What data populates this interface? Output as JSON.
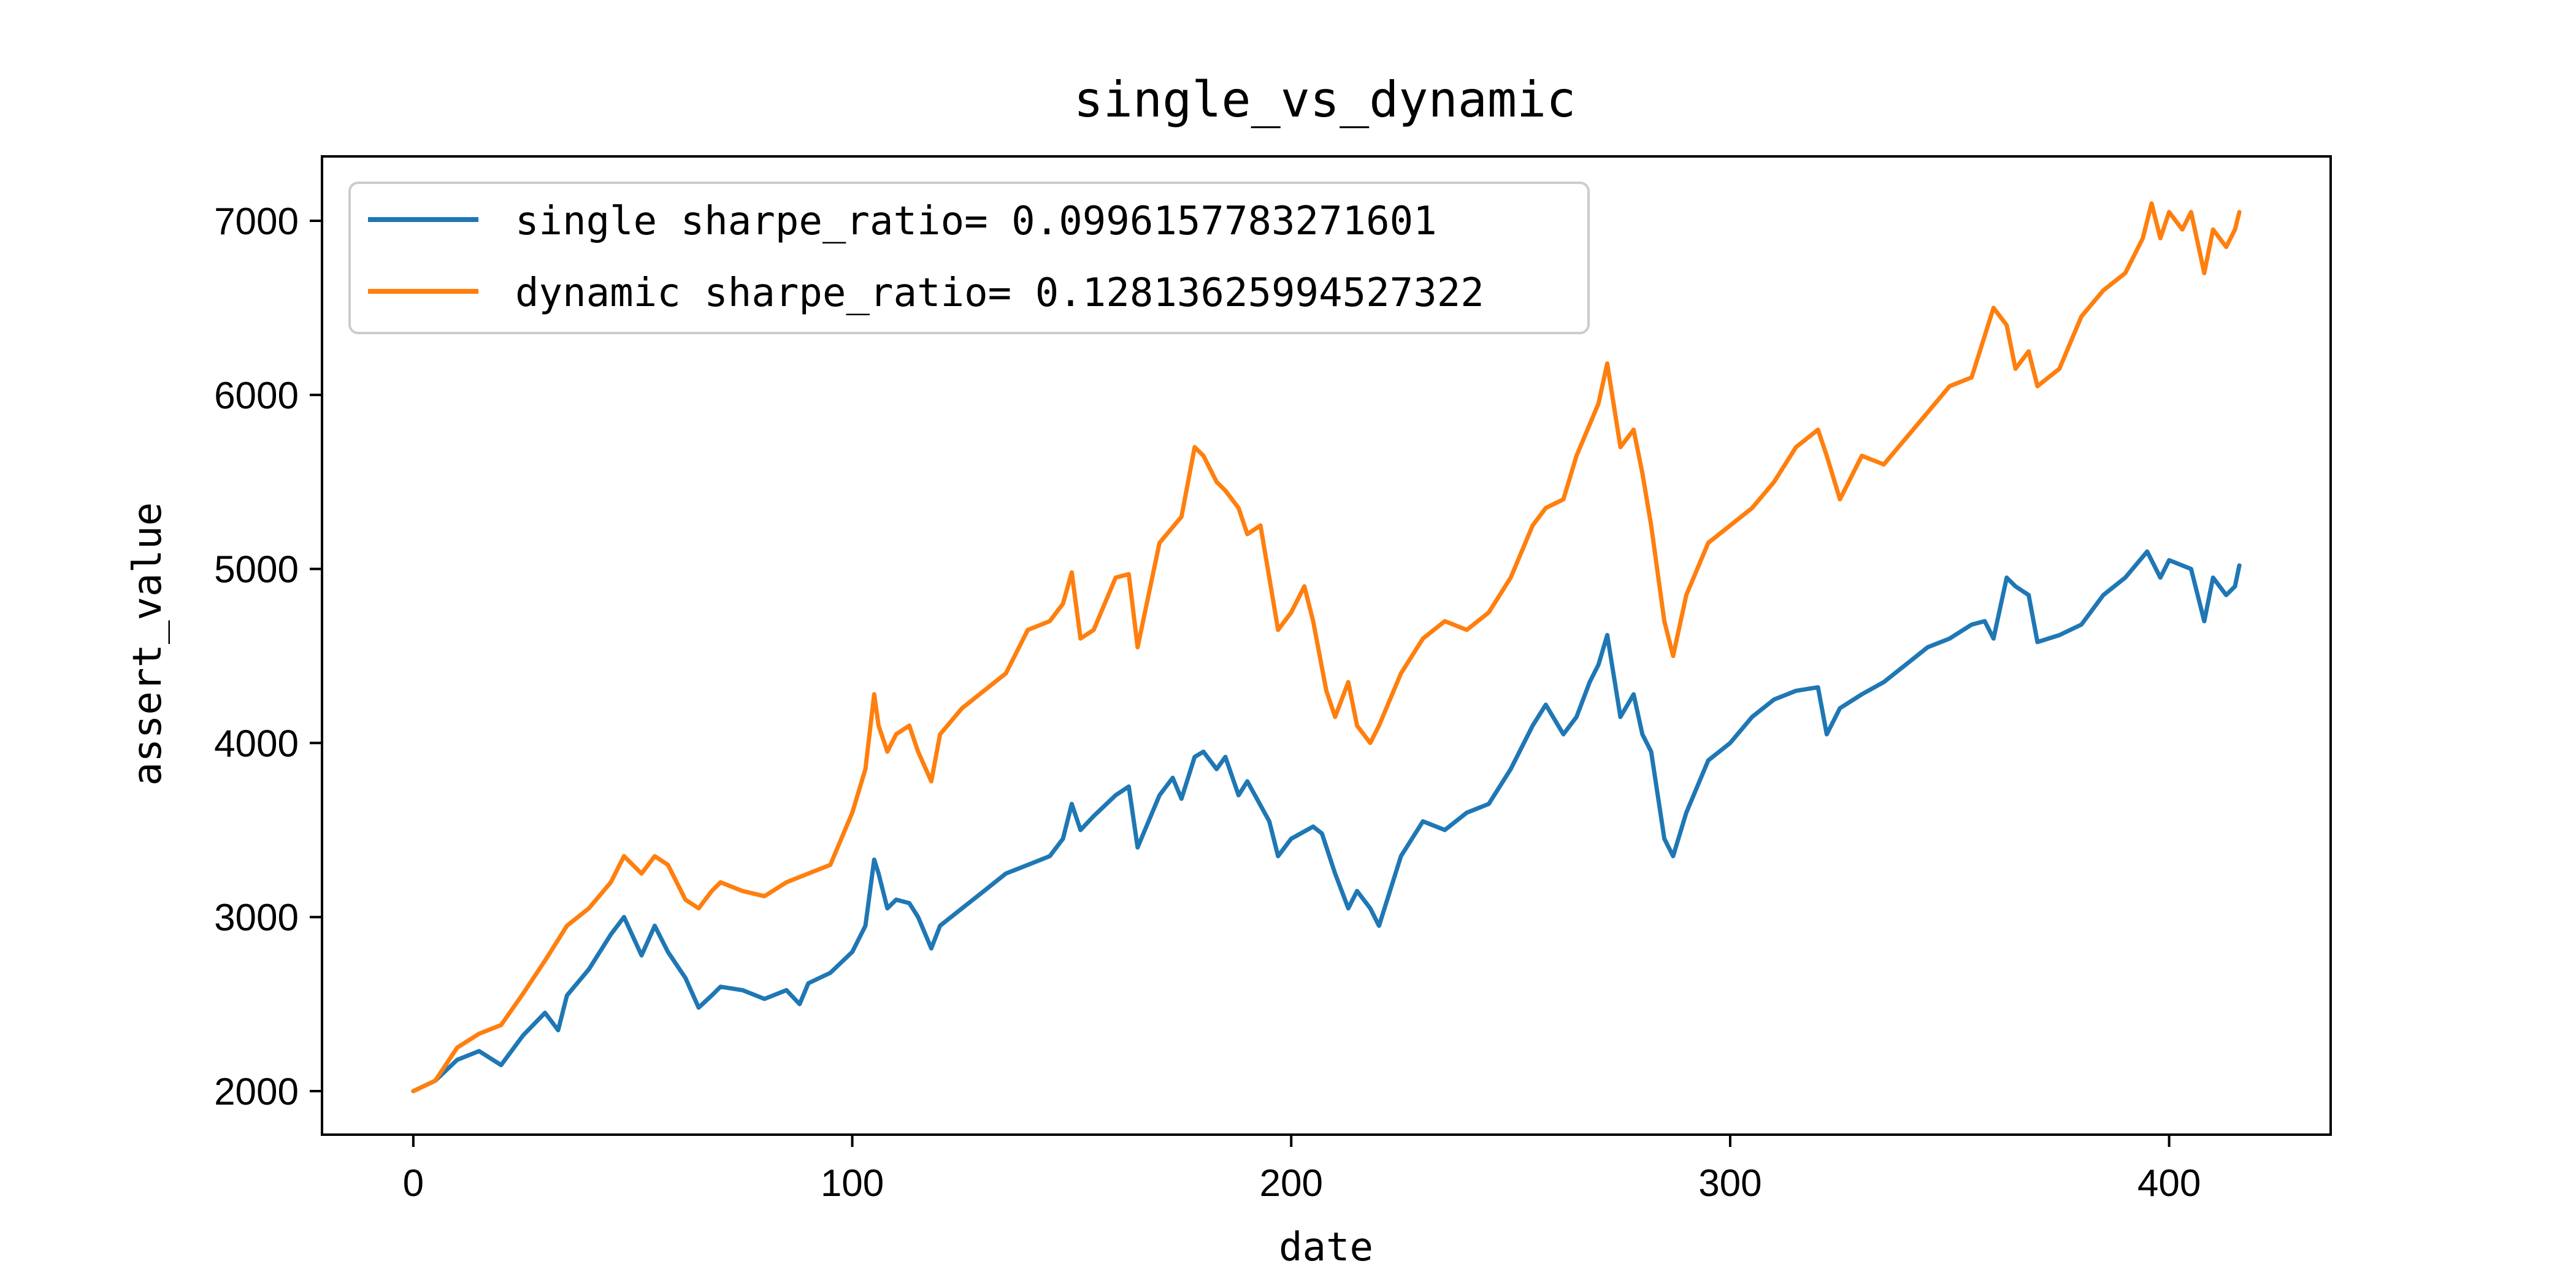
{
  "chart_data": {
    "type": "line",
    "title": "single_vs_dynamic",
    "xlabel": "date",
    "ylabel": "assert_value",
    "xlim": [
      -20.8,
      436.8
    ],
    "ylim": [
      1750,
      7370
    ],
    "xticks": [
      0,
      100,
      200,
      300,
      400
    ],
    "yticks": [
      2000,
      3000,
      4000,
      5000,
      6000,
      7000
    ],
    "x_tick_labels": [
      "0",
      "100",
      "200",
      "300",
      "400"
    ],
    "y_tick_labels": [
      "2000",
      "3000",
      "4000",
      "5000",
      "6000",
      "7000"
    ],
    "legend_position": "top-left",
    "grid": false,
    "series": [
      {
        "name": "single sharpe_ratio= 0.0996157783271601",
        "color": "#1f77b4",
        "x": [
          0,
          5,
          10,
          15,
          20,
          25,
          30,
          33,
          35,
          40,
          45,
          48,
          52,
          55,
          58,
          62,
          65,
          68,
          70,
          75,
          80,
          85,
          88,
          90,
          95,
          100,
          103,
          105,
          106,
          108,
          110,
          113,
          115,
          118,
          120,
          125,
          130,
          135,
          140,
          145,
          148,
          150,
          152,
          155,
          160,
          163,
          165,
          170,
          173,
          175,
          178,
          180,
          183,
          185,
          188,
          190,
          195,
          197,
          200,
          205,
          207,
          210,
          213,
          215,
          218,
          220,
          225,
          230,
          235,
          240,
          245,
          250,
          255,
          258,
          262,
          265,
          268,
          270,
          272,
          275,
          278,
          280,
          282,
          285,
          287,
          290,
          295,
          300,
          305,
          310,
          315,
          320,
          322,
          325,
          330,
          335,
          340,
          345,
          350,
          355,
          358,
          360,
          363,
          365,
          368,
          370,
          375,
          380,
          385,
          390,
          395,
          398,
          400,
          405,
          408,
          410,
          413,
          415,
          416
        ],
        "y": [
          2000,
          2060,
          2180,
          2230,
          2150,
          2320,
          2450,
          2350,
          2550,
          2700,
          2900,
          3000,
          2780,
          2950,
          2800,
          2650,
          2480,
          2550,
          2600,
          2580,
          2530,
          2580,
          2500,
          2620,
          2680,
          2800,
          2950,
          3330,
          3250,
          3050,
          3100,
          3080,
          3000,
          2820,
          2950,
          3050,
          3150,
          3250,
          3300,
          3350,
          3450,
          3650,
          3500,
          3580,
          3700,
          3750,
          3400,
          3700,
          3800,
          3680,
          3920,
          3950,
          3850,
          3920,
          3700,
          3780,
          3550,
          3350,
          3450,
          3520,
          3480,
          3250,
          3050,
          3150,
          3050,
          2950,
          3350,
          3550,
          3500,
          3600,
          3650,
          3850,
          4100,
          4220,
          4050,
          4150,
          4350,
          4450,
          4620,
          4150,
          4280,
          4050,
          3950,
          3450,
          3350,
          3600,
          3900,
          4000,
          4150,
          4250,
          4300,
          4320,
          4050,
          4200,
          4280,
          4350,
          4450,
          4550,
          4600,
          4680,
          4700,
          4600,
          4950,
          4900,
          4850,
          4580,
          4620,
          4680,
          4850,
          4950,
          5100,
          4950,
          5050,
          5000,
          4700,
          4950,
          4850,
          4900,
          5020
        ]
      },
      {
        "name": "dynamic sharpe_ratio= 0.12813625994527322",
        "color": "#ff7f0e",
        "x": [
          0,
          5,
          10,
          15,
          20,
          25,
          30,
          35,
          40,
          45,
          48,
          52,
          55,
          58,
          62,
          65,
          68,
          70,
          75,
          80,
          85,
          90,
          95,
          100,
          103,
          105,
          106,
          108,
          110,
          113,
          115,
          118,
          120,
          125,
          130,
          135,
          140,
          145,
          148,
          150,
          152,
          155,
          160,
          163,
          165,
          170,
          175,
          178,
          180,
          183,
          185,
          188,
          190,
          193,
          195,
          197,
          200,
          203,
          205,
          208,
          210,
          213,
          215,
          218,
          220,
          225,
          230,
          235,
          240,
          245,
          250,
          255,
          258,
          262,
          265,
          270,
          272,
          275,
          278,
          280,
          282,
          285,
          287,
          290,
          295,
          300,
          305,
          310,
          315,
          320,
          322,
          325,
          330,
          335,
          340,
          345,
          350,
          355,
          360,
          363,
          365,
          368,
          370,
          375,
          380,
          385,
          390,
          394,
          396,
          398,
          400,
          403,
          405,
          408,
          410,
          413,
          415,
          416
        ],
        "y": [
          2000,
          2060,
          2250,
          2330,
          2380,
          2560,
          2750,
          2950,
          3050,
          3200,
          3350,
          3250,
          3350,
          3300,
          3100,
          3050,
          3150,
          3200,
          3150,
          3120,
          3200,
          3250,
          3300,
          3600,
          3850,
          4280,
          4100,
          3950,
          4050,
          4100,
          3950,
          3780,
          4050,
          4200,
          4300,
          4400,
          4650,
          4700,
          4800,
          4980,
          4600,
          4650,
          4950,
          4970,
          4550,
          5150,
          5300,
          5700,
          5650,
          5500,
          5450,
          5350,
          5200,
          5250,
          4950,
          4650,
          4750,
          4900,
          4700,
          4300,
          4150,
          4350,
          4100,
          4000,
          4100,
          4400,
          4600,
          4700,
          4650,
          4750,
          4950,
          5250,
          5350,
          5400,
          5650,
          5950,
          6180,
          5700,
          5800,
          5550,
          5250,
          4700,
          4500,
          4850,
          5150,
          5250,
          5350,
          5500,
          5700,
          5800,
          5650,
          5400,
          5650,
          5600,
          5750,
          5900,
          6050,
          6100,
          6500,
          6400,
          6150,
          6250,
          6050,
          6150,
          6450,
          6600,
          6700,
          6900,
          7100,
          6900,
          7050,
          6950,
          7050,
          6700,
          6950,
          6850,
          6950,
          7050
        ]
      }
    ]
  }
}
